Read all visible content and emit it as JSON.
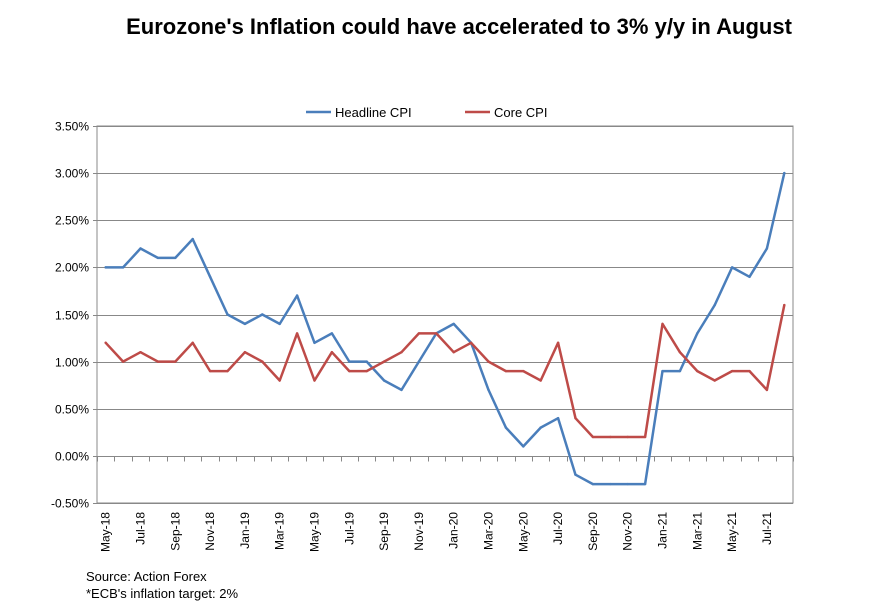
{
  "chart_data": {
    "type": "line",
    "title": "Eurozone's Inflation could have accelerated to 3% y/y in August",
    "x": [
      "May-18",
      "Jun-18",
      "Jul-18",
      "Aug-18",
      "Sep-18",
      "Oct-18",
      "Nov-18",
      "Dec-18",
      "Jan-19",
      "Feb-19",
      "Mar-19",
      "Apr-19",
      "May-19",
      "Jun-19",
      "Jul-19",
      "Aug-19",
      "Sep-19",
      "Oct-19",
      "Nov-19",
      "Dec-19",
      "Jan-20",
      "Feb-20",
      "Mar-20",
      "Apr-20",
      "May-20",
      "Jun-20",
      "Jul-20",
      "Aug-20",
      "Sep-20",
      "Oct-20",
      "Nov-20",
      "Dec-20",
      "Jan-21",
      "Feb-21",
      "Mar-21",
      "Apr-21",
      "May-21",
      "Jun-21",
      "Jul-21",
      "Aug-21"
    ],
    "xtick_labels": [
      "May-18",
      "Jul-18",
      "Sep-18",
      "Nov-18",
      "Jan-19",
      "Mar-19",
      "May-19",
      "Jul-19",
      "Sep-19",
      "Nov-19",
      "Jan-20",
      "Mar-20",
      "May-20",
      "Jul-20",
      "Sep-20",
      "Nov-20",
      "Jan-21",
      "Mar-21",
      "May-21",
      "Jul-21"
    ],
    "series": [
      {
        "name": "Headline CPI",
        "color": "#4a7ebb",
        "values": [
          2.0,
          2.0,
          2.2,
          2.1,
          2.1,
          2.3,
          1.9,
          1.5,
          1.4,
          1.5,
          1.4,
          1.7,
          1.2,
          1.3,
          1.0,
          1.0,
          0.8,
          0.7,
          1.0,
          1.3,
          1.4,
          1.2,
          0.7,
          0.3,
          0.1,
          0.3,
          0.4,
          -0.2,
          -0.3,
          -0.3,
          -0.3,
          -0.3,
          0.9,
          0.9,
          1.3,
          1.6,
          2.0,
          1.9,
          2.2,
          3.0
        ]
      },
      {
        "name": "Core CPI",
        "color": "#be4b48",
        "values": [
          1.2,
          1.0,
          1.1,
          1.0,
          1.0,
          1.2,
          0.9,
          0.9,
          1.1,
          1.0,
          0.8,
          1.3,
          0.8,
          1.1,
          0.9,
          0.9,
          1.0,
          1.1,
          1.3,
          1.3,
          1.1,
          1.2,
          1.0,
          0.9,
          0.9,
          0.8,
          1.2,
          0.4,
          0.2,
          0.2,
          0.2,
          0.2,
          1.4,
          1.1,
          0.9,
          0.8,
          0.9,
          0.9,
          0.7,
          1.6
        ]
      }
    ],
    "ylim": [
      -0.5,
      3.5
    ],
    "yticks": [
      "-0.50%",
      "0.00%",
      "0.50%",
      "1.00%",
      "1.50%",
      "2.00%",
      "2.50%",
      "3.00%",
      "3.50%"
    ],
    "ytick_values": [
      -0.5,
      0,
      0.5,
      1,
      1.5,
      2,
      2.5,
      3,
      3.5
    ],
    "grid": true,
    "legend": "top-center",
    "notes": [
      "Source: Action Forex",
      "*ECB's  inflation target: 2%"
    ]
  }
}
